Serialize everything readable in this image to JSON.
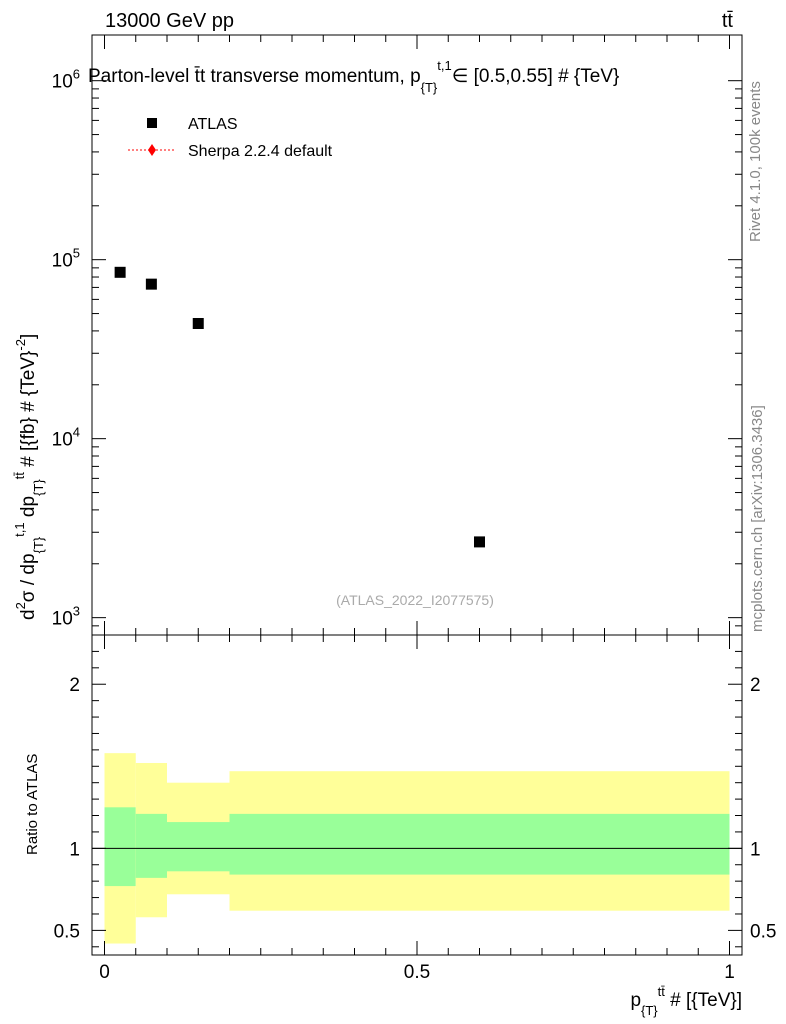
{
  "header": {
    "left": "13000 GeV pp",
    "right": "tt̄"
  },
  "side_labels": {
    "rivet": "Rivet 4.1.0,  100k events",
    "mcplots": "mcplots.cern.ch [arXiv:1306.3436]"
  },
  "chart_data": [
    {
      "type": "scatter",
      "title": "Parton-level t̄t transverse momentum, p_{T}^{t,1} ∈ [0.5,0.55] # {TeV}",
      "title_main": "Parton-level t̄t transverse momentum, p",
      "title_sub": "{T}",
      "title_sup": "t,1",
      "title_tail": "∈ [0.5,0.55] # {TeV}",
      "ylabel": "d²σ / dp_{T}^{t,1} dp_{T}^{tt̄} # [{fb} # {TeV}^{-2}]",
      "ylabel_parts": {
        "a": "d",
        "a_sup": "2",
        "b": "σ / dp",
        "b_sub": "{T}",
        "b_sup": "t,1",
        "c": " dp",
        "c_sub": "{T}",
        "c_sup": "tt̄",
        "d": " # [{fb} # {TeV}",
        "d_sup": "-2",
        "e": "]"
      },
      "yscale": "log",
      "ylim": [
        800,
        1800000
      ],
      "xlim": [
        -0.02,
        1.02
      ],
      "y_ticks": [
        {
          "value": 1000,
          "base": "10",
          "exp": "3"
        },
        {
          "value": 10000,
          "base": "10",
          "exp": "4"
        },
        {
          "value": 100000,
          "base": "10",
          "exp": "5"
        },
        {
          "value": 1000000,
          "base": "10",
          "exp": "6"
        }
      ],
      "legend": [
        {
          "label": "ATLAS",
          "marker": "square",
          "color": "#000000"
        },
        {
          "label": "Sherpa 2.2.4 default",
          "marker": "diamond",
          "color": "#ff0000"
        }
      ],
      "legend_position": "top-left",
      "watermark": "(ATLAS_2022_I2077575)",
      "series": [
        {
          "name": "ATLAS",
          "x": [
            0.025,
            0.075,
            0.15,
            0.6
          ],
          "y": [
            85000,
            73000,
            44000,
            2650
          ]
        }
      ]
    },
    {
      "type": "band",
      "ylabel": "Ratio to ATLAS",
      "xlabel": "p_{T}^{tt̄} # [{TeV}]",
      "xlabel_parts": {
        "a": "p",
        "a_sub": "{T}",
        "a_sup": "tt̄",
        "b": " # [{TeV}]"
      },
      "ylim": [
        0.35,
        2.3
      ],
      "xlim": [
        -0.02,
        1.02
      ],
      "y_ticks": [
        {
          "value": 0.5,
          "label": "0.5"
        },
        {
          "value": 1,
          "label": "1"
        },
        {
          "value": 2,
          "label": "2"
        }
      ],
      "x_ticks": [
        {
          "value": 0,
          "label": "0"
        },
        {
          "value": 0.5,
          "label": "0.5"
        },
        {
          "value": 1,
          "label": "1"
        }
      ],
      "reference_line": 1,
      "bins": [
        {
          "x0": 0.0,
          "x1": 0.05,
          "inner": [
            0.77,
            1.25
          ],
          "outer": [
            0.42,
            1.58
          ]
        },
        {
          "x0": 0.05,
          "x1": 0.1,
          "inner": [
            0.82,
            1.21
          ],
          "outer": [
            0.58,
            1.52
          ]
        },
        {
          "x0": 0.1,
          "x1": 0.2,
          "inner": [
            0.86,
            1.16
          ],
          "outer": [
            0.72,
            1.4
          ]
        },
        {
          "x0": 0.2,
          "x1": 1.0,
          "inner": [
            0.84,
            1.21
          ],
          "outer": [
            0.62,
            1.47
          ]
        }
      ],
      "colors": {
        "inner": "#99ff99",
        "outer": "#ffff99"
      }
    }
  ]
}
